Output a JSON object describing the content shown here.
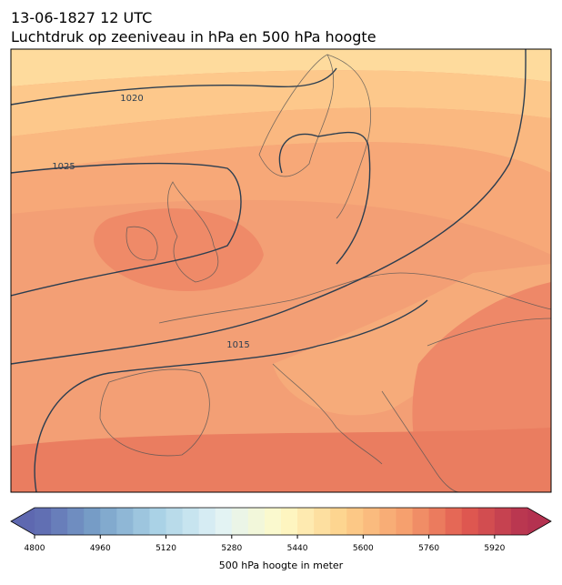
{
  "header": {
    "date": "13-06-1827 12 UTC",
    "title": "Luchtdruk op zeeniveau in hPa en 500 hPa hoogte"
  },
  "contour_labels": [
    "1020",
    "1025",
    "1015"
  ],
  "colorbar": {
    "range": [
      4800,
      6000
    ],
    "step": 40,
    "ticks": [
      4800,
      4960,
      5120,
      5280,
      5440,
      5600,
      5760,
      5920
    ],
    "label": "500 hPa hoogte in meter"
  }
}
